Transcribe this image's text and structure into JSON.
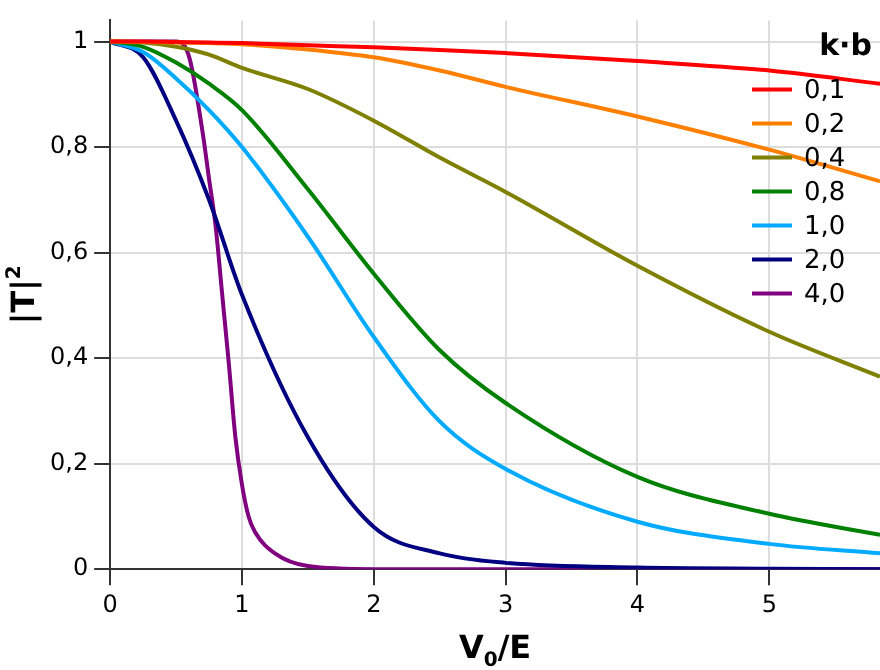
{
  "chart_data": {
    "type": "line",
    "xlabel": "V$_{0}$/E",
    "ylabel": "|T|$^{2}$",
    "legend_title": "k·b",
    "x": [
      0,
      0.25,
      0.5,
      0.75,
      1,
      1.5,
      2,
      2.5,
      3,
      4,
      5,
      5.84
    ],
    "series": [
      {
        "name": "0,1",
        "color": "#ff0000",
        "values": [
          1,
          1,
          0.999,
          0.998,
          0.997,
          0.993,
          0.989,
          0.984,
          0.978,
          0.963,
          0.945,
          0.92
        ]
      },
      {
        "name": "0,2",
        "color": "#ff8000",
        "values": [
          1,
          0.999,
          0.998,
          0.997,
          0.995,
          0.985,
          0.97,
          0.945,
          0.914,
          0.858,
          0.795,
          0.735
        ]
      },
      {
        "name": "0,4",
        "color": "#808000",
        "values": [
          1,
          0.998,
          0.99,
          0.975,
          0.95,
          0.91,
          0.85,
          0.78,
          0.715,
          0.575,
          0.45,
          0.365
        ]
      },
      {
        "name": "0,8",
        "color": "#008000",
        "values": [
          1,
          0.99,
          0.96,
          0.92,
          0.87,
          0.72,
          0.56,
          0.415,
          0.315,
          0.175,
          0.105,
          0.065
        ]
      },
      {
        "name": "1,0",
        "color": "#00aaff",
        "values": [
          1,
          0.98,
          0.93,
          0.87,
          0.8,
          0.63,
          0.44,
          0.28,
          0.19,
          0.09,
          0.048,
          0.03
        ]
      },
      {
        "name": "2,0",
        "color": "#000080",
        "values": [
          1,
          0.97,
          0.85,
          0.7,
          0.52,
          0.25,
          0.08,
          0.03,
          0.012,
          0.003,
          0.001,
          0
        ]
      },
      {
        "name": "4,0",
        "color": "#800080",
        "x": [
          0,
          0.4,
          0.5,
          0.6,
          0.7,
          0.75,
          0.8,
          0.85,
          0.9,
          0.95,
          1,
          1.05,
          1.1,
          1.25,
          1.5,
          2,
          3,
          5.84
        ],
        "values": [
          1,
          1,
          1,
          0.97,
          0.83,
          0.74,
          0.65,
          0.52,
          0.39,
          0.25,
          0.16,
          0.1,
          0.07,
          0.03,
          0.006,
          0,
          0,
          0
        ]
      }
    ],
    "xlim": [
      0,
      5.84
    ],
    "ylim": [
      0,
      1.04
    ],
    "xticks": [
      0,
      1,
      2,
      3,
      4,
      5
    ],
    "yticks": [
      0,
      {
        "value": 0.2,
        "label": "0,2"
      },
      {
        "value": 0.4,
        "label": "0,4"
      },
      {
        "value": 0.6,
        "label": "0,6"
      },
      {
        "value": 0.8,
        "label": "0,8"
      },
      1
    ],
    "grid": true,
    "legend": "top right",
    "marker": "none",
    "line_style": "solid"
  }
}
